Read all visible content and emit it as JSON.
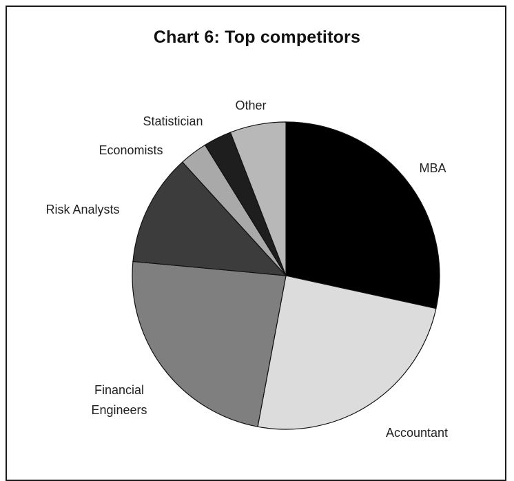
{
  "chart_data": {
    "type": "pie",
    "title": "Chart 6: Top competitors",
    "slices": [
      {
        "label": [
          "MBA"
        ],
        "value": 29,
        "color": "#000000"
      },
      {
        "label": [
          "Accountant"
        ],
        "value": 25,
        "color": "#dcdcdc"
      },
      {
        "label": [
          "Financial",
          "Engineers"
        ],
        "value": 24,
        "color": "#7f7f7f"
      },
      {
        "label": [
          "Risk Analysts"
        ],
        "value": 12,
        "color": "#3c3c3c"
      },
      {
        "label": [
          "Economists"
        ],
        "value": 3,
        "color": "#a9a9a9"
      },
      {
        "label": [
          "Statistician"
        ],
        "value": 3,
        "color": "#1e1e1e"
      },
      {
        "label": [
          "Other"
        ],
        "value": 6,
        "color": "#b8b8b8"
      }
    ]
  }
}
